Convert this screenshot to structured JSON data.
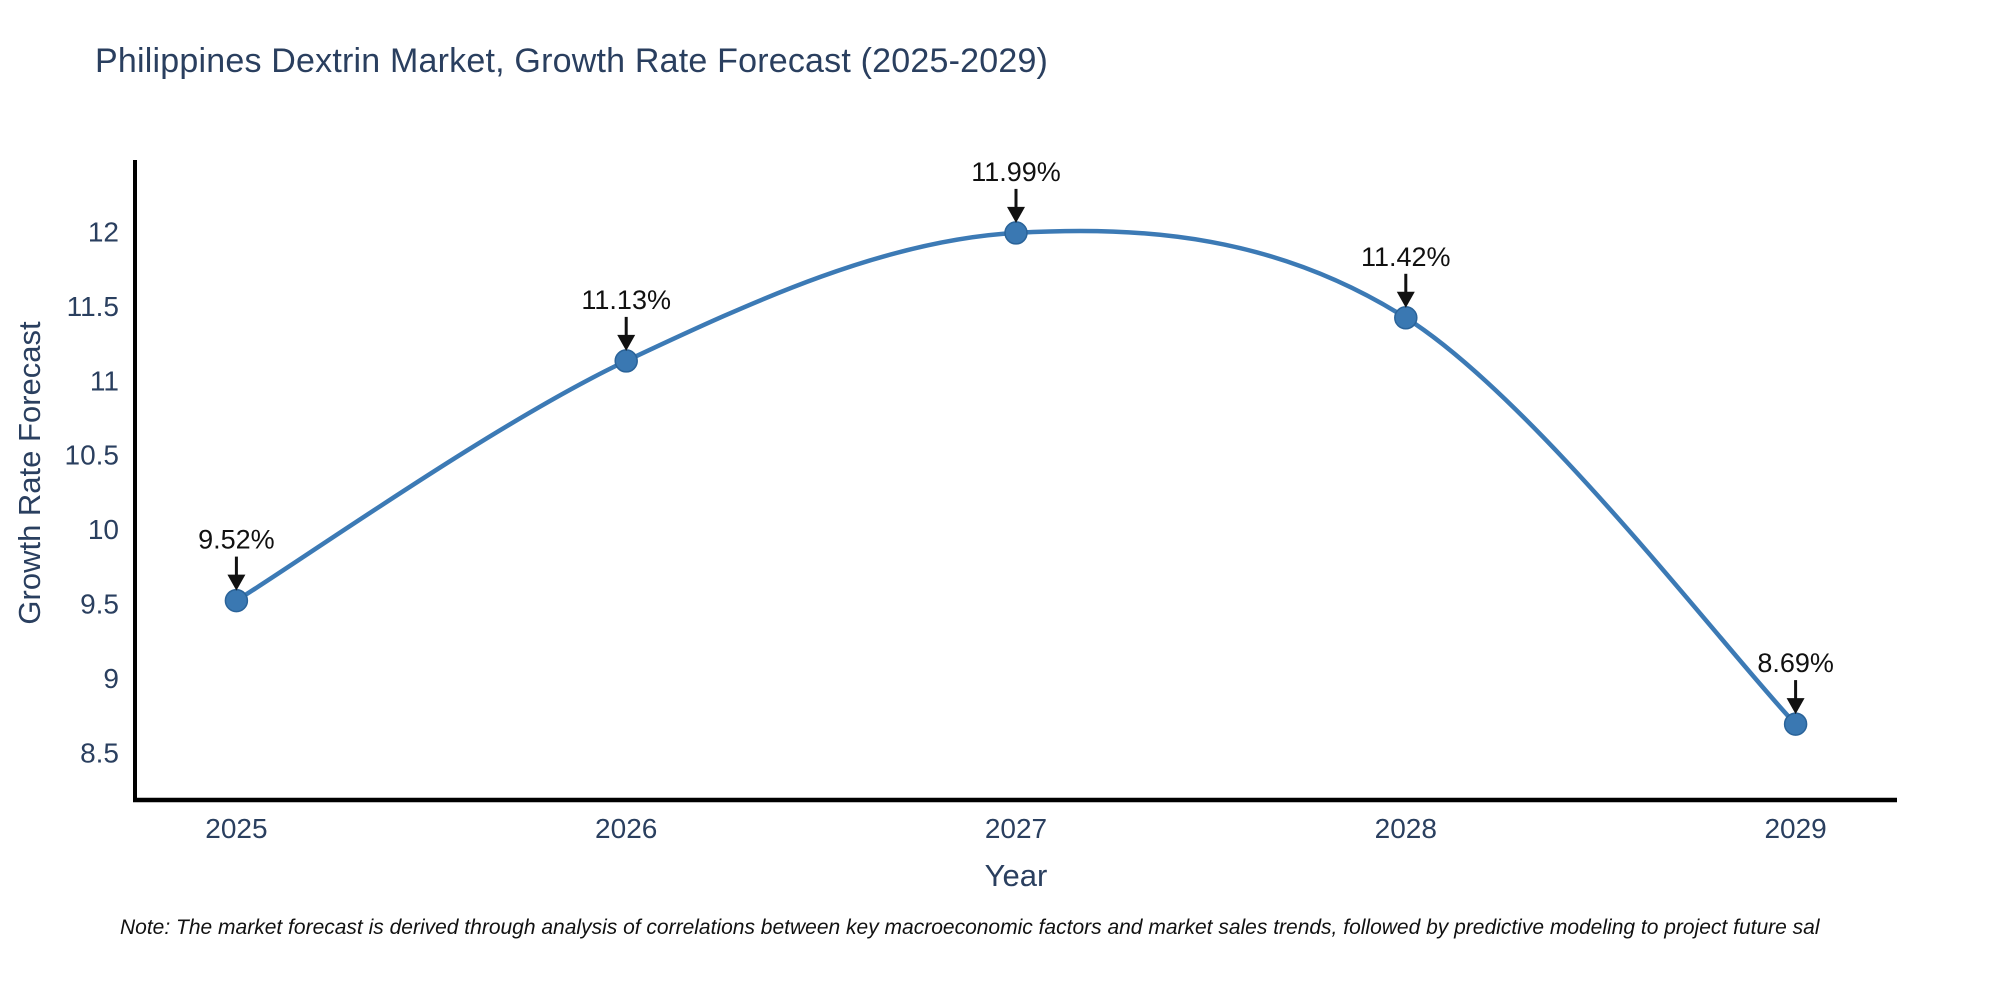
{
  "note": "Note: The market forecast is derived through analysis of correlations between key macroeconomic factors and market sales trends, followed by predictive modeling to project future sal",
  "chart_data": {
    "type": "line",
    "title": "Philippines Dextrin Market, Growth Rate Forecast (2025-2029)",
    "xlabel": "Year",
    "ylabel": "Growth Rate Forecast",
    "x": [
      2025,
      2026,
      2027,
      2028,
      2029
    ],
    "series": [
      {
        "name": "Growth Rate Forecast",
        "values": [
          9.52,
          11.13,
          11.99,
          11.42,
          8.69
        ]
      }
    ],
    "point_labels": [
      "9.52%",
      "11.13%",
      "11.99%",
      "11.42%",
      "8.69%"
    ],
    "x_ticks": [
      "2025",
      "2026",
      "2027",
      "2028",
      "2029"
    ],
    "y_ticks": [
      "8.5",
      "9",
      "9.5",
      "10",
      "10.5",
      "11",
      "11.5",
      "12"
    ],
    "xlim": [
      2024.74,
      2029.26
    ],
    "ylim": [
      8.18,
      12.48
    ],
    "line_shape": "spline",
    "grid": false,
    "legend": "none",
    "colors": {
      "line": "#3c7ab5",
      "marker": "#3a78b2",
      "marker_edge": "#2a6399",
      "axis": "#000000",
      "text": "#2a3f5f",
      "annotation": "#111111",
      "background": "#ffffff"
    }
  }
}
